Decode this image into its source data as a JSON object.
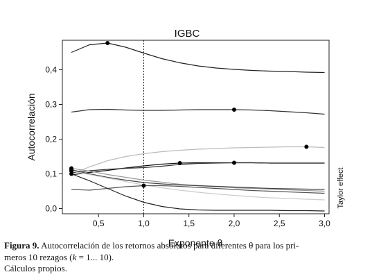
{
  "chart_data": {
    "type": "line",
    "title": "IGBC",
    "xlabel": "Exponente θ",
    "ylabel": "Autocorrelación",
    "right_label": "Taylor effect",
    "xlim": [
      0.1,
      3.05
    ],
    "ylim": [
      -0.015,
      0.485
    ],
    "x_ticks": [
      0.5,
      1.0,
      1.5,
      2.0,
      2.5,
      3.0
    ],
    "x_tick_labels": [
      "0,5",
      "1,0",
      "1,5",
      "2,0",
      "2,5",
      "3,0"
    ],
    "y_ticks": [
      0.0,
      0.1,
      0.2,
      0.3,
      0.4
    ],
    "y_tick_labels": [
      "0,0",
      "0,1",
      "0,2",
      "0,3",
      "0,4"
    ],
    "reference_line_x": 1.0,
    "grid": false,
    "series": [
      {
        "values": [
          [
            0.2,
            0.45
          ],
          [
            0.4,
            0.472
          ],
          [
            0.6,
            0.477
          ],
          [
            0.8,
            0.465
          ],
          [
            1.0,
            0.448
          ],
          [
            1.2,
            0.432
          ],
          [
            1.4,
            0.42
          ],
          [
            1.6,
            0.411
          ],
          [
            1.8,
            0.405
          ],
          [
            2.0,
            0.401
          ],
          [
            2.2,
            0.398
          ],
          [
            2.4,
            0.396
          ],
          [
            2.6,
            0.395
          ],
          [
            2.8,
            0.393
          ],
          [
            3.0,
            0.392
          ]
        ],
        "color": "#222222",
        "max_point": [
          0.6,
          0.477
        ]
      },
      {
        "values": [
          [
            0.2,
            0.278
          ],
          [
            0.4,
            0.285
          ],
          [
            0.6,
            0.286
          ],
          [
            0.8,
            0.284
          ],
          [
            1.0,
            0.283
          ],
          [
            1.2,
            0.283
          ],
          [
            1.4,
            0.284
          ],
          [
            1.6,
            0.285
          ],
          [
            1.8,
            0.285
          ],
          [
            2.0,
            0.285
          ],
          [
            2.2,
            0.284
          ],
          [
            2.4,
            0.282
          ],
          [
            2.6,
            0.279
          ],
          [
            2.8,
            0.276
          ],
          [
            3.0,
            0.272
          ]
        ],
        "color": "#333333",
        "max_point": [
          2.0,
          0.285
        ]
      },
      {
        "values": [
          [
            0.2,
            0.1
          ],
          [
            0.4,
            0.12
          ],
          [
            0.6,
            0.138
          ],
          [
            0.8,
            0.15
          ],
          [
            1.0,
            0.158
          ],
          [
            1.2,
            0.164
          ],
          [
            1.4,
            0.168
          ],
          [
            1.6,
            0.171
          ],
          [
            1.8,
            0.173
          ],
          [
            2.0,
            0.175
          ],
          [
            2.2,
            0.176
          ],
          [
            2.4,
            0.177
          ],
          [
            2.6,
            0.178
          ],
          [
            2.8,
            0.178
          ],
          [
            3.0,
            0.176
          ]
        ],
        "color": "#bbbbbb",
        "max_point": [
          2.8,
          0.178
        ]
      },
      {
        "values": [
          [
            0.2,
            0.097
          ],
          [
            0.4,
            0.104
          ],
          [
            0.6,
            0.11
          ],
          [
            0.8,
            0.117
          ],
          [
            1.0,
            0.123
          ],
          [
            1.2,
            0.128
          ],
          [
            1.4,
            0.131
          ],
          [
            1.6,
            0.132
          ],
          [
            1.8,
            0.132
          ],
          [
            2.0,
            0.132
          ],
          [
            2.2,
            0.132
          ],
          [
            2.4,
            0.131
          ],
          [
            2.6,
            0.131
          ],
          [
            2.8,
            0.131
          ],
          [
            3.0,
            0.131
          ]
        ],
        "color": "#111111",
        "max_point": [
          1.4,
          0.131
        ]
      },
      {
        "values": [
          [
            0.2,
            0.103
          ],
          [
            0.4,
            0.109
          ],
          [
            0.6,
            0.113
          ],
          [
            0.8,
            0.116
          ],
          [
            1.0,
            0.118
          ],
          [
            1.2,
            0.122
          ],
          [
            1.4,
            0.127
          ],
          [
            1.6,
            0.13
          ],
          [
            1.8,
            0.131
          ],
          [
            2.0,
            0.132
          ],
          [
            2.2,
            0.132
          ],
          [
            2.4,
            0.131
          ],
          [
            2.6,
            0.131
          ],
          [
            2.8,
            0.131
          ],
          [
            3.0,
            0.131
          ]
        ],
        "color": "#333333",
        "max_point": [
          2.0,
          0.132
        ]
      },
      {
        "values": [
          [
            0.2,
            0.116
          ],
          [
            0.4,
            0.108
          ],
          [
            0.6,
            0.098
          ],
          [
            0.8,
            0.09
          ],
          [
            1.0,
            0.082
          ],
          [
            1.2,
            0.076
          ],
          [
            1.4,
            0.07
          ],
          [
            1.6,
            0.066
          ],
          [
            1.8,
            0.063
          ],
          [
            2.0,
            0.06
          ],
          [
            2.2,
            0.058
          ],
          [
            2.4,
            0.056
          ],
          [
            2.6,
            0.054
          ],
          [
            2.8,
            0.052
          ],
          [
            3.0,
            0.05
          ]
        ],
        "color": "#999999",
        "max_point": [
          0.2,
          0.116
        ]
      },
      {
        "values": [
          [
            0.2,
            0.112
          ],
          [
            0.4,
            0.1
          ],
          [
            0.6,
            0.09
          ],
          [
            0.8,
            0.082
          ],
          [
            1.0,
            0.075
          ],
          [
            1.2,
            0.071
          ],
          [
            1.4,
            0.068
          ],
          [
            1.6,
            0.066
          ],
          [
            1.8,
            0.064
          ],
          [
            2.0,
            0.062
          ],
          [
            2.2,
            0.06
          ],
          [
            2.4,
            0.058
          ],
          [
            2.6,
            0.057
          ],
          [
            2.8,
            0.056
          ],
          [
            3.0,
            0.055
          ]
        ],
        "color": "#444444",
        "max_point": [
          0.2,
          0.112
        ]
      },
      {
        "values": [
          [
            0.2,
            0.108
          ],
          [
            0.4,
            0.098
          ],
          [
            0.6,
            0.088
          ],
          [
            0.8,
            0.078
          ],
          [
            1.0,
            0.068
          ],
          [
            1.2,
            0.06
          ],
          [
            1.4,
            0.053
          ],
          [
            1.6,
            0.047
          ],
          [
            1.8,
            0.042
          ],
          [
            2.0,
            0.038
          ],
          [
            2.2,
            0.034
          ],
          [
            2.4,
            0.031
          ],
          [
            2.6,
            0.029
          ],
          [
            2.8,
            0.027
          ],
          [
            3.0,
            0.025
          ]
        ],
        "color": "#cccccc",
        "max_point": [
          0.2,
          0.108
        ]
      },
      {
        "values": [
          [
            0.2,
            0.055
          ],
          [
            0.4,
            0.053
          ],
          [
            0.6,
            0.058
          ],
          [
            0.8,
            0.063
          ],
          [
            1.0,
            0.066
          ],
          [
            1.2,
            0.066
          ],
          [
            1.4,
            0.064
          ],
          [
            1.6,
            0.061
          ],
          [
            1.8,
            0.058
          ],
          [
            2.0,
            0.055
          ],
          [
            2.2,
            0.052
          ],
          [
            2.4,
            0.05
          ],
          [
            2.6,
            0.048
          ],
          [
            2.8,
            0.046
          ],
          [
            3.0,
            0.044
          ]
        ],
        "color": "#555555",
        "max_point": [
          1.0,
          0.066
        ]
      },
      {
        "values": [
          [
            0.2,
            0.1
          ],
          [
            0.4,
            0.08
          ],
          [
            0.6,
            0.058
          ],
          [
            0.8,
            0.036
          ],
          [
            1.0,
            0.018
          ],
          [
            1.2,
            0.006
          ],
          [
            1.4,
            -0.001
          ],
          [
            1.6,
            -0.004
          ],
          [
            1.8,
            -0.005
          ],
          [
            2.0,
            -0.005
          ],
          [
            2.2,
            -0.005
          ],
          [
            2.4,
            -0.005
          ],
          [
            2.6,
            -0.006
          ],
          [
            2.8,
            -0.006
          ],
          [
            3.0,
            -0.007
          ]
        ],
        "color": "#222222",
        "max_point": [
          0.2,
          0.1
        ]
      }
    ]
  },
  "caption": {
    "label": "Figura 9.",
    "text_1": " Autocorrelación de los retornos absolutos para diferentes θ para los pri-",
    "text_2a": "meros 10 rezagos (",
    "text_2k": "k",
    "text_2b": " = 1... 10).",
    "source": "Cálculos propios."
  }
}
